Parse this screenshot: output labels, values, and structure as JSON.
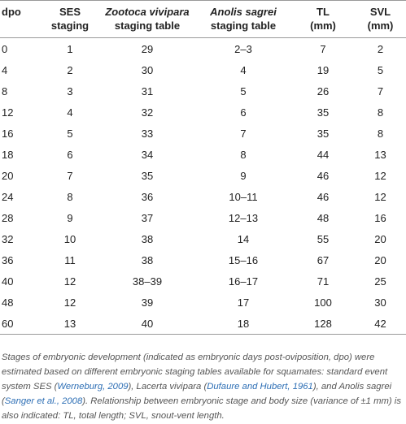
{
  "table": {
    "header": [
      [
        "dpo"
      ],
      [
        "SES",
        "staging"
      ],
      [
        "Zootoca vivipara",
        "staging table"
      ],
      [
        "Anolis sagrei",
        "staging table"
      ],
      [
        "TL",
        "(mm)"
      ],
      [
        "SVL",
        "(mm)"
      ]
    ],
    "rows": [
      [
        0,
        1,
        29,
        "2–3",
        7,
        2
      ],
      [
        4,
        2,
        30,
        4,
        19,
        5
      ],
      [
        8,
        3,
        31,
        5,
        26,
        7
      ],
      [
        12,
        4,
        32,
        6,
        35,
        8
      ],
      [
        16,
        5,
        33,
        7,
        35,
        8
      ],
      [
        18,
        6,
        34,
        8,
        44,
        13
      ],
      [
        20,
        7,
        35,
        9,
        46,
        12
      ],
      [
        24,
        8,
        36,
        "10–11",
        46,
        12
      ],
      [
        28,
        9,
        37,
        "12–13",
        48,
        16
      ],
      [
        32,
        10,
        38,
        14,
        55,
        20
      ],
      [
        36,
        11,
        38,
        "15–16",
        67,
        20
      ],
      [
        40,
        12,
        "38–39",
        "16–17",
        71,
        25
      ],
      [
        48,
        12,
        39,
        17,
        100,
        30
      ],
      [
        60,
        13,
        40,
        18,
        128,
        42
      ]
    ]
  },
  "caption": [
    "Stages of embryonic development (indicated as embryonic days post-oviposition, dpo) were estimated based on different embryonic staging tables available for squamates: standard event system SES (",
    "Werneburg, 2009",
    "), Lacerta vivipara (",
    "Dufaure and Hubert, 1961",
    "), and Anolis sagrei (",
    "Sanger et al., 2008",
    "). Relationship between embryonic stage and body size (variance of ±1 mm) is also indicated: TL, total length; SVL, snout-vent length."
  ]
}
